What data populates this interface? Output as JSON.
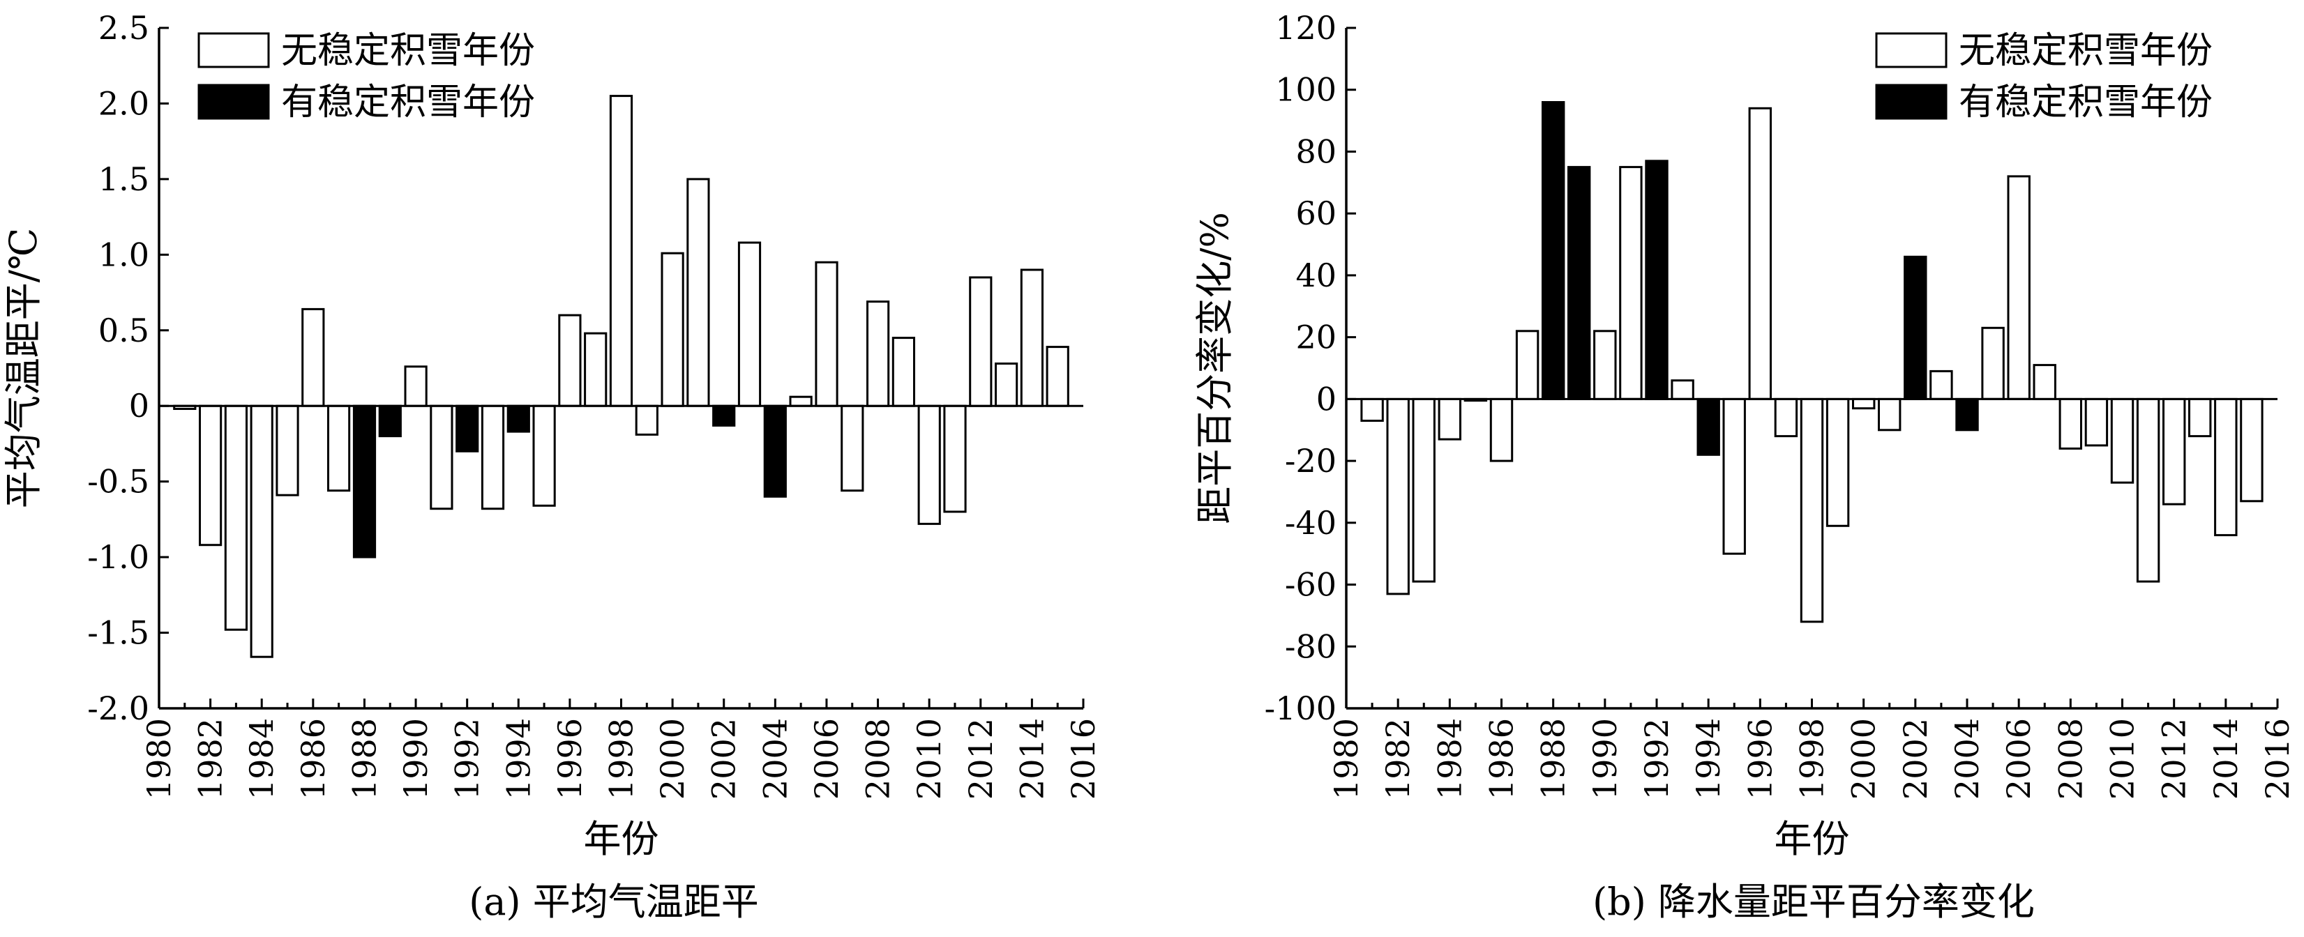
{
  "chart_data": [
    {
      "type": "bar",
      "panel": "a",
      "caption": "(a) 平均气温距平",
      "xlabel": "年份",
      "ylabel": "平均气温距平/℃",
      "xlim": [
        1980,
        2016
      ],
      "ylim": [
        -2.0,
        2.5
      ],
      "x_ticks": [
        1980,
        1982,
        1984,
        1986,
        1988,
        1990,
        1992,
        1994,
        1996,
        1998,
        2000,
        2002,
        2004,
        2006,
        2008,
        2010,
        2012,
        2014,
        2016
      ],
      "y_ticks": [
        -2.0,
        -1.5,
        -1.0,
        -0.5,
        0,
        0.5,
        1.0,
        1.5,
        2.0,
        2.5
      ],
      "y_tick_labels": [
        "-2.0",
        "-1.5",
        "-1.0",
        "-0.5",
        "0",
        "0.5",
        "1.0",
        "1.5",
        "2.0",
        "2.5"
      ],
      "legend_position": "top-left",
      "series": [
        {
          "name": "无稳定积雪年份",
          "fill": "#ffffff"
        },
        {
          "name": "有稳定积雪年份",
          "fill": "#000000"
        }
      ],
      "bars": [
        {
          "year": 1981,
          "value": -0.02,
          "stable_snow": false
        },
        {
          "year": 1982,
          "value": -0.92,
          "stable_snow": false
        },
        {
          "year": 1983,
          "value": -1.48,
          "stable_snow": false
        },
        {
          "year": 1984,
          "value": -1.66,
          "stable_snow": false
        },
        {
          "year": 1985,
          "value": -0.59,
          "stable_snow": false
        },
        {
          "year": 1986,
          "value": 0.64,
          "stable_snow": false
        },
        {
          "year": 1987,
          "value": -0.56,
          "stable_snow": false
        },
        {
          "year": 1988,
          "value": -1.0,
          "stable_snow": true
        },
        {
          "year": 1989,
          "value": -0.2,
          "stable_snow": true
        },
        {
          "year": 1990,
          "value": 0.26,
          "stable_snow": false
        },
        {
          "year": 1991,
          "value": -0.68,
          "stable_snow": false
        },
        {
          "year": 1992,
          "value": -0.3,
          "stable_snow": true
        },
        {
          "year": 1993,
          "value": -0.68,
          "stable_snow": false
        },
        {
          "year": 1994,
          "value": -0.17,
          "stable_snow": true
        },
        {
          "year": 1995,
          "value": -0.66,
          "stable_snow": false
        },
        {
          "year": 1996,
          "value": 0.6,
          "stable_snow": false
        },
        {
          "year": 1997,
          "value": 0.48,
          "stable_snow": false
        },
        {
          "year": 1998,
          "value": 2.05,
          "stable_snow": false
        },
        {
          "year": 1999,
          "value": -0.19,
          "stable_snow": false
        },
        {
          "year": 2000,
          "value": 1.01,
          "stable_snow": false
        },
        {
          "year": 2001,
          "value": 1.5,
          "stable_snow": false
        },
        {
          "year": 2002,
          "value": -0.13,
          "stable_snow": true
        },
        {
          "year": 2003,
          "value": 1.08,
          "stable_snow": false
        },
        {
          "year": 2004,
          "value": -0.6,
          "stable_snow": true
        },
        {
          "year": 2005,
          "value": 0.06,
          "stable_snow": false
        },
        {
          "year": 2006,
          "value": 0.95,
          "stable_snow": false
        },
        {
          "year": 2007,
          "value": -0.56,
          "stable_snow": false
        },
        {
          "year": 2008,
          "value": 0.69,
          "stable_snow": false
        },
        {
          "year": 2009,
          "value": 0.45,
          "stable_snow": false
        },
        {
          "year": 2010,
          "value": -0.78,
          "stable_snow": false
        },
        {
          "year": 2011,
          "value": -0.7,
          "stable_snow": false
        },
        {
          "year": 2012,
          "value": 0.85,
          "stable_snow": false
        },
        {
          "year": 2013,
          "value": 0.28,
          "stable_snow": false
        },
        {
          "year": 2014,
          "value": 0.9,
          "stable_snow": false
        },
        {
          "year": 2015,
          "value": 0.39,
          "stable_snow": false
        }
      ]
    },
    {
      "type": "bar",
      "panel": "b",
      "caption": "(b) 降水量距平百分率变化",
      "xlabel": "年份",
      "ylabel": "距平百分率变化/%",
      "xlim": [
        1980,
        2016
      ],
      "ylim": [
        -100,
        120
      ],
      "x_ticks": [
        1980,
        1982,
        1984,
        1986,
        1988,
        1990,
        1992,
        1994,
        1996,
        1998,
        2000,
        2002,
        2004,
        2006,
        2008,
        2010,
        2012,
        2014,
        2016
      ],
      "y_ticks": [
        -100,
        -80,
        -60,
        -40,
        -20,
        0,
        20,
        40,
        60,
        80,
        100,
        120
      ],
      "y_tick_labels": [
        "-100",
        "-80",
        "-60",
        "-40",
        "-20",
        "0",
        "20",
        "40",
        "60",
        "80",
        "100",
        "120"
      ],
      "legend_position": "top-right",
      "series": [
        {
          "name": "无稳定积雪年份",
          "fill": "#ffffff"
        },
        {
          "name": "有稳定积雪年份",
          "fill": "#000000"
        }
      ],
      "bars": [
        {
          "year": 1981,
          "value": -7,
          "stable_snow": false
        },
        {
          "year": 1982,
          "value": -63,
          "stable_snow": false
        },
        {
          "year": 1983,
          "value": -59,
          "stable_snow": false
        },
        {
          "year": 1984,
          "value": -13,
          "stable_snow": false
        },
        {
          "year": 1985,
          "value": -0.5,
          "stable_snow": false
        },
        {
          "year": 1986,
          "value": -20,
          "stable_snow": false
        },
        {
          "year": 1987,
          "value": 22,
          "stable_snow": false
        },
        {
          "year": 1988,
          "value": 96,
          "stable_snow": true
        },
        {
          "year": 1989,
          "value": 75,
          "stable_snow": true
        },
        {
          "year": 1990,
          "value": 22,
          "stable_snow": false
        },
        {
          "year": 1991,
          "value": 75,
          "stable_snow": false
        },
        {
          "year": 1992,
          "value": 77,
          "stable_snow": true
        },
        {
          "year": 1993,
          "value": 6,
          "stable_snow": false
        },
        {
          "year": 1994,
          "value": -18,
          "stable_snow": true
        },
        {
          "year": 1995,
          "value": -50,
          "stable_snow": false
        },
        {
          "year": 1996,
          "value": 94,
          "stable_snow": false
        },
        {
          "year": 1997,
          "value": -12,
          "stable_snow": false
        },
        {
          "year": 1998,
          "value": -72,
          "stable_snow": false
        },
        {
          "year": 1999,
          "value": -41,
          "stable_snow": false
        },
        {
          "year": 2000,
          "value": -3,
          "stable_snow": false
        },
        {
          "year": 2001,
          "value": -10,
          "stable_snow": false
        },
        {
          "year": 2002,
          "value": 46,
          "stable_snow": true
        },
        {
          "year": 2003,
          "value": 9,
          "stable_snow": false
        },
        {
          "year": 2004,
          "value": -10,
          "stable_snow": true
        },
        {
          "year": 2005,
          "value": 23,
          "stable_snow": false
        },
        {
          "year": 2006,
          "value": 72,
          "stable_snow": false
        },
        {
          "year": 2007,
          "value": 11,
          "stable_snow": false
        },
        {
          "year": 2008,
          "value": -16,
          "stable_snow": false
        },
        {
          "year": 2009,
          "value": -15,
          "stable_snow": false
        },
        {
          "year": 2010,
          "value": -27,
          "stable_snow": false
        },
        {
          "year": 2011,
          "value": -59,
          "stable_snow": false
        },
        {
          "year": 2012,
          "value": -34,
          "stable_snow": false
        },
        {
          "year": 2013,
          "value": -12,
          "stable_snow": false
        },
        {
          "year": 2014,
          "value": -44,
          "stable_snow": false
        },
        {
          "year": 2015,
          "value": -33,
          "stable_snow": false
        }
      ]
    }
  ]
}
